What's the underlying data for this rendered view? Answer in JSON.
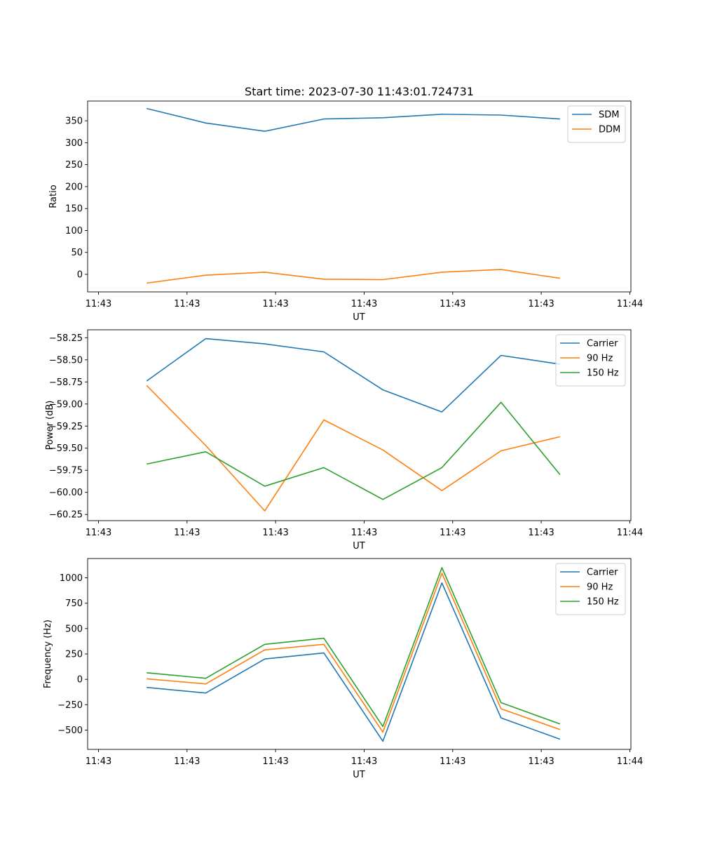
{
  "chart_data": [
    {
      "type": "line",
      "title": "Start time: 2023-07-30 11:43:01.724731",
      "xlabel": "UT",
      "ylabel": "Ratio",
      "x_tick_labels": [
        "11:43",
        "11:43",
        "11:43",
        "11:43",
        "11:43",
        "11:43",
        "11:43"
      ],
      "x_tick_end_label": "11:44",
      "xlim": [
        0,
        9.2
      ],
      "x": [
        1,
        2,
        3,
        4,
        5,
        6,
        7,
        8
      ],
      "ylim": [
        -40,
        395
      ],
      "y_ticks": [
        0,
        50,
        100,
        150,
        200,
        250,
        300,
        350
      ],
      "y_tick_labels": [
        "0",
        "50",
        "100",
        "150",
        "200",
        "250",
        "300",
        "350"
      ],
      "legend_position": "top-right",
      "series": [
        {
          "name": "SDM",
          "color": "#1f77b4",
          "values": [
            378,
            345,
            326,
            354,
            357,
            365,
            363,
            354
          ]
        },
        {
          "name": "DDM",
          "color": "#ff7f0e",
          "values": [
            -20,
            -2,
            5,
            -11,
            -12,
            5,
            11,
            -9
          ]
        }
      ]
    },
    {
      "type": "line",
      "title": "",
      "xlabel": "UT",
      "ylabel": "Power (dB)",
      "x_tick_labels": [
        "11:43",
        "11:43",
        "11:43",
        "11:43",
        "11:43",
        "11:43",
        "11:43"
      ],
      "x_tick_end_label": "11:44",
      "xlim": [
        0,
        9.2
      ],
      "x": [
        1,
        2,
        3,
        4,
        5,
        6,
        7,
        8
      ],
      "ylim": [
        -60.32,
        -58.16
      ],
      "y_ticks": [
        -60.25,
        -60.0,
        -59.75,
        -59.5,
        -59.25,
        -59.0,
        -58.75,
        -58.5,
        -58.25
      ],
      "y_tick_labels": [
        "−60.25",
        "−60.00",
        "−59.75",
        "−59.50",
        "−59.25",
        "−59.00",
        "−58.75",
        "−58.50",
        "−58.25"
      ],
      "legend_position": "top-right",
      "series": [
        {
          "name": "Carrier",
          "color": "#1f77b4",
          "values": [
            -58.74,
            -58.26,
            -58.32,
            -58.41,
            -58.84,
            -59.09,
            -58.45,
            -58.55
          ]
        },
        {
          "name": "90 Hz",
          "color": "#ff7f0e",
          "values": [
            -58.79,
            -59.47,
            -60.21,
            -59.18,
            -59.52,
            -59.98,
            -59.53,
            -59.37
          ]
        },
        {
          "name": "150 Hz",
          "color": "#2ca02c",
          "values": [
            -59.68,
            -59.54,
            -59.93,
            -59.72,
            -60.08,
            -59.72,
            -58.98,
            -59.8
          ]
        }
      ]
    },
    {
      "type": "line",
      "title": "",
      "xlabel": "UT",
      "ylabel": "Frequency (Hz)",
      "x_tick_labels": [
        "11:43",
        "11:43",
        "11:43",
        "11:43",
        "11:43",
        "11:43",
        "11:43"
      ],
      "x_tick_end_label": "11:44",
      "xlim": [
        0,
        9.2
      ],
      "x": [
        1,
        2,
        3,
        4,
        5,
        6,
        7,
        8
      ],
      "ylim": [
        -690,
        1190
      ],
      "y_ticks": [
        -500,
        -250,
        0,
        250,
        500,
        750,
        1000
      ],
      "y_tick_labels": [
        "−500",
        "−250",
        "0",
        "250",
        "500",
        "750",
        "1000"
      ],
      "legend_position": "top-right",
      "series": [
        {
          "name": "Carrier",
          "color": "#1f77b4",
          "values": [
            -80,
            -135,
            200,
            260,
            -610,
            950,
            -380,
            -590
          ]
        },
        {
          "name": "90 Hz",
          "color": "#ff7f0e",
          "values": [
            5,
            -45,
            290,
            345,
            -520,
            1045,
            -290,
            -495
          ]
        },
        {
          "name": "150 Hz",
          "color": "#2ca02c",
          "values": [
            65,
            10,
            345,
            405,
            -465,
            1100,
            -230,
            -440
          ]
        }
      ]
    }
  ]
}
